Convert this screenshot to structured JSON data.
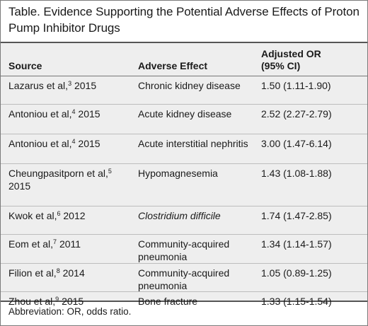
{
  "title": "Table. Evidence Supporting the Potential Adverse Effects of Proton Pump Inhibitor Drugs",
  "columns": {
    "source": "Source",
    "effect": "Adverse Effect",
    "or_line1": "Adjusted OR",
    "or_line2": "(95% CI)"
  },
  "rows": [
    {
      "author": "Lazarus et al,",
      "ref": "3",
      "year": "2015",
      "effect": "Chronic kidney disease",
      "or": "1.50 (1.11-1.90)"
    },
    {
      "author": "Antoniou et al,",
      "ref": "4",
      "year": "2015",
      "effect": "Acute kidney disease",
      "or": "2.52 (2.27-2.79)"
    },
    {
      "author": "Antoniou et al,",
      "ref": "4",
      "year": "2015",
      "effect": "Acute interstitial nephritis",
      "or": "3.00 (1.47-6.14)"
    },
    {
      "author": "Cheungpasitporn et al,",
      "ref": "5",
      "year": "2015",
      "effect": "Hypomagnesemia",
      "or": "1.43 (1.08-1.88)"
    },
    {
      "author": "Kwok et al,",
      "ref": "6",
      "year": "2012",
      "effect": "Clostridium difficile",
      "or": "1.74 (1.47-2.85)"
    },
    {
      "author": "Eom et al,",
      "ref": "7",
      "year": "2011",
      "effect": "Community-acquired pneumonia",
      "or": "1.34 (1.14-1.57)"
    },
    {
      "author": "Filion et al,",
      "ref": "8",
      "year": "2014",
      "effect": "Community-acquired pneumonia",
      "or": "1.05 (0.89-1.25)"
    },
    {
      "author": "Zhou et al,",
      "ref": "9",
      "year": "2015",
      "effect": "Bone fracture",
      "or": "1.33 (1.15-1.54)"
    }
  ],
  "footnote": "Abbreviation: OR, odds ratio."
}
